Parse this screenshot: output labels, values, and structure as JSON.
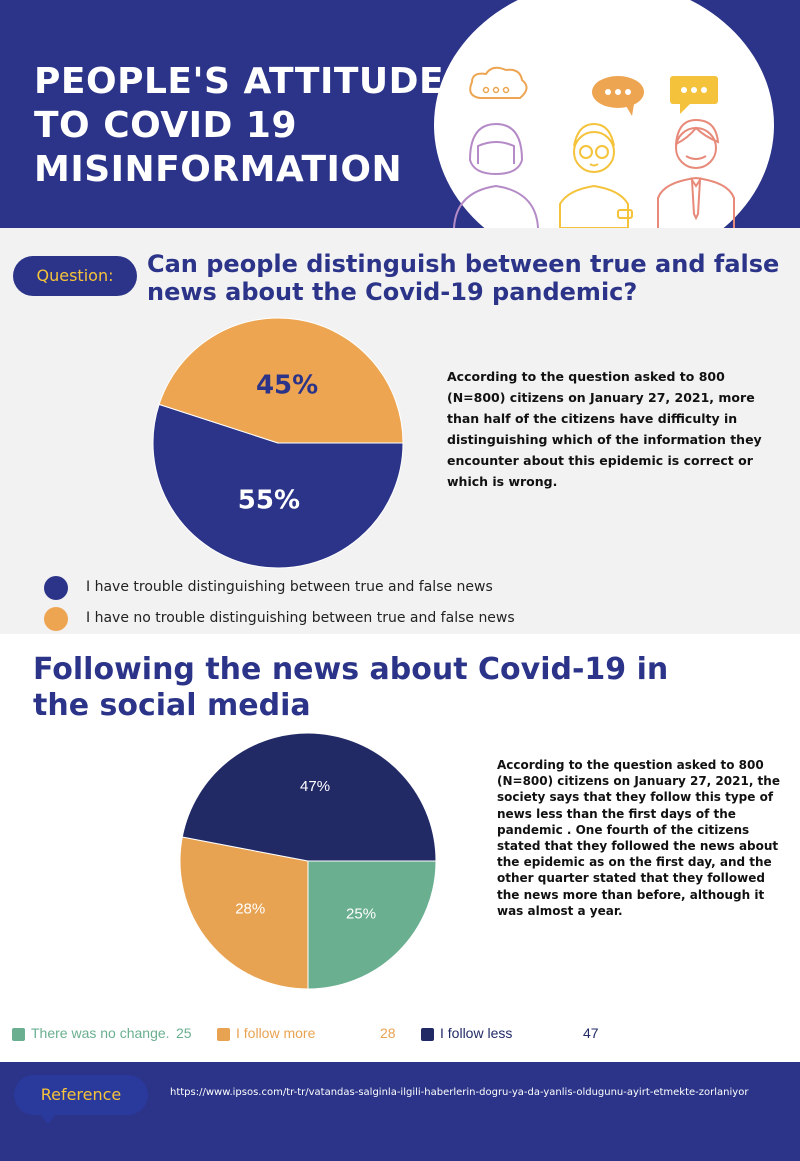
{
  "header": {
    "title_lines": [
      "PEOPLE'S ATTITUDE",
      "TO COVID 19",
      "MISINFORMATION"
    ]
  },
  "section1": {
    "question_label": "Question:",
    "question_lines": [
      "Can people distinguish between true and false",
      "news about the Covid-19 pandemic?"
    ],
    "description": "According to the question asked to 800 (N=800) citizens on January 27, 2021, more than half of the citizens have difficulty in distinguishing which of the information they encounter about this epidemic is correct or which is wrong.",
    "legend": [
      {
        "label": "I have trouble distinguishing between true and false news",
        "color": "#2b3488"
      },
      {
        "label": "I have no trouble distinguishing between true and false news",
        "color": "#eda552"
      }
    ]
  },
  "section2": {
    "title_lines": [
      "Following the news about Covid-19 in",
      "the social media"
    ],
    "description": "According to the question asked to 800 (N=800) citizens on January 27, 2021, the society says that they follow this type of news less than the first days of the pandemic . One fourth of the citizens stated that they followed the news about the epidemic as on the first day, and the other quarter stated that they followed the news more than before, although it was almost a year."
  },
  "reference": {
    "label": "Reference",
    "url": "https://www.ipsos.com/tr-tr/vatandas-salginla-ilgili-haberlerin-dogru-ya-da-yanlis-oldugunu-ayirt-etmekte-zorlaniyor"
  },
  "chart_data": [
    {
      "type": "pie",
      "categories": [
        "I have trouble distinguishing between true and false news",
        "I have no trouble distinguishing between true and false news"
      ],
      "values": [
        55,
        45
      ],
      "data_labels": [
        "55%",
        "45%"
      ],
      "colors": [
        "#2b3488",
        "#eda552"
      ],
      "legend": "bottom-left"
    },
    {
      "type": "pie",
      "categories": [
        "There was no change.",
        "I follow more",
        "I follow less"
      ],
      "values": [
        25,
        28,
        47
      ],
      "data_labels": [
        "25%",
        "28%",
        "47%"
      ],
      "colors": [
        "#6aaf8f",
        "#e8a352",
        "#222a66"
      ],
      "legend": "bottom",
      "legend_values": [
        "25",
        "28",
        "47"
      ]
    }
  ]
}
